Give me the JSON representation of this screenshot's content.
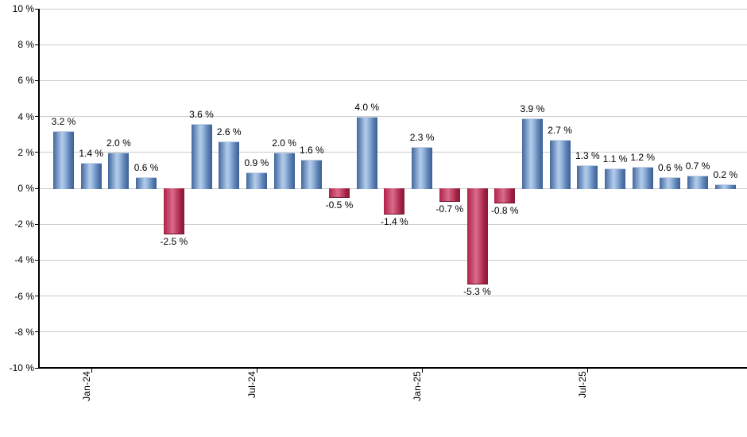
{
  "chart_data": {
    "type": "bar",
    "title": "",
    "xlabel": "",
    "ylabel": "",
    "ylim": [
      -10,
      10
    ],
    "grid": "horizontal",
    "legend": "none",
    "values": [
      3.2,
      1.4,
      2.0,
      0.6,
      -2.5,
      3.6,
      2.6,
      0.9,
      2.0,
      1.6,
      -0.5,
      4.0,
      -1.4,
      2.3,
      -0.7,
      -5.3,
      -0.8,
      3.9,
      2.7,
      1.3,
      1.1,
      1.2,
      0.6,
      0.7,
      0.2
    ],
    "bar_labels": [
      "3.2 %",
      "1.4 %",
      "2.0 %",
      "0.6 %",
      "-2.5 %",
      "3.6 %",
      "2.6 %",
      "0.9 %",
      "2.0 %",
      "1.6 %",
      "-0.5 %",
      "4.0 %",
      "-1.4 %",
      "2.3 %",
      "-0.7 %",
      "-5.3 %",
      "-0.8 %",
      "3.9 %",
      "2.7 %",
      "1.3 %",
      "1.1 %",
      "1.2 %",
      "0.6 %",
      "0.7 %",
      "0.2 %"
    ],
    "x_ticks": [
      {
        "index": 1,
        "label": "Jan-24"
      },
      {
        "index": 7,
        "label": "Jul-24"
      },
      {
        "index": 13,
        "label": "Jan-25"
      },
      {
        "index": 19,
        "label": "Jul-25"
      }
    ],
    "y_ticks": [
      {
        "value": 10,
        "label": "10 %"
      },
      {
        "value": 8,
        "label": "8 %"
      },
      {
        "value": 6,
        "label": "6 %"
      },
      {
        "value": 4,
        "label": "4 %"
      },
      {
        "value": 2,
        "label": "2 %"
      },
      {
        "value": 0,
        "label": "0 %"
      },
      {
        "value": -2,
        "label": "-2 %"
      },
      {
        "value": -4,
        "label": "-4 %"
      },
      {
        "value": -6,
        "label": "-6 %"
      },
      {
        "value": -8,
        "label": "-8 %"
      },
      {
        "value": -10,
        "label": "-10 %"
      }
    ],
    "colors": {
      "positive_bar_edge": "#44679b",
      "positive_bar_light": "#b3cce9",
      "negative_bar_edge": "#b12147",
      "negative_bar_light": "#d96d8d",
      "gridline": "#cccccc",
      "axis": "#000000",
      "label_text": "#000000",
      "background": "#ffffff"
    }
  }
}
